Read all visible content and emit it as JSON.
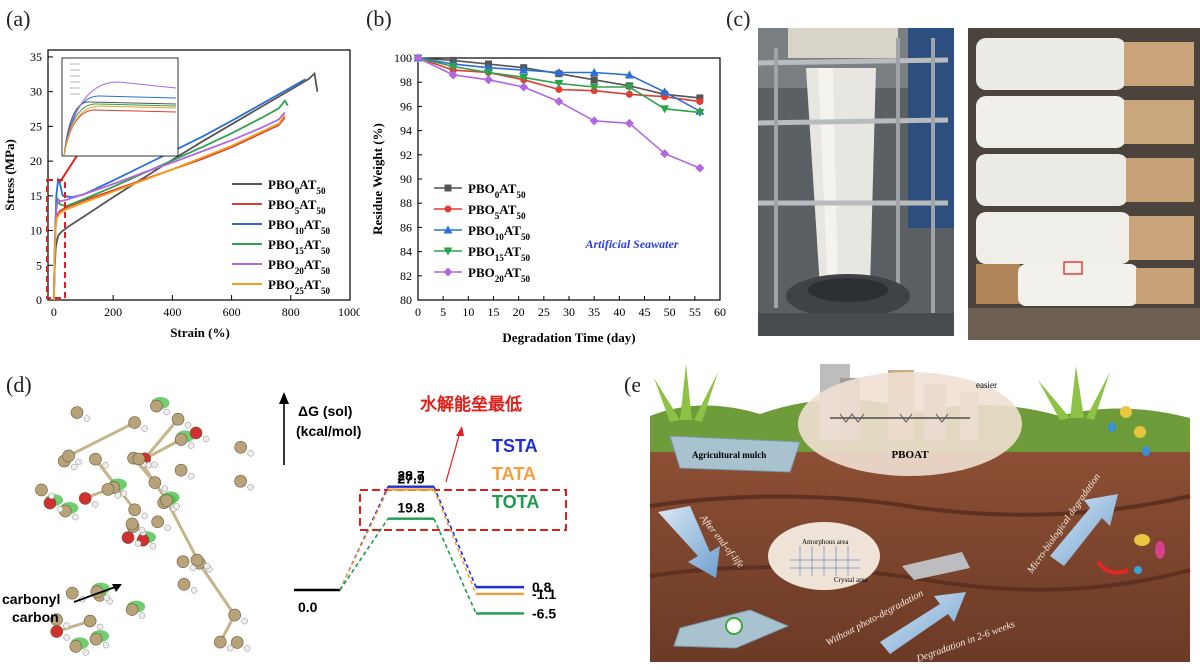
{
  "panel_labels": {
    "a": "(a)",
    "b": "(b)",
    "c": "(c)",
    "d": "(d)",
    "e": "(e)"
  },
  "chart_data": [
    {
      "id": "a",
      "type": "line",
      "xlabel": "Strain (%)",
      "ylabel": "Stress (MPa)",
      "xlim": [
        -20,
        1000
      ],
      "ylim": [
        0,
        36
      ],
      "xticks": [
        0,
        200,
        400,
        600,
        800,
        1000
      ],
      "yticks": [
        0,
        5,
        10,
        15,
        20,
        25,
        30,
        35
      ],
      "legend_position": "right",
      "series": [
        {
          "name": "PBO0AT50",
          "base": "PBO",
          "sub1": "0",
          "mid": "AT",
          "sub2": "50",
          "color": "#555555",
          "x": [
            0,
            2,
            6,
            10,
            15,
            25,
            50,
            100,
            200,
            300,
            400,
            500,
            600,
            700,
            800,
            860,
            880,
            890
          ],
          "y": [
            0,
            4,
            7.5,
            8.5,
            9.3,
            9.8,
            10.6,
            12,
            14.8,
            17.5,
            20.2,
            22.8,
            25.3,
            27.8,
            30.3,
            31.8,
            32.6,
            30
          ]
        },
        {
          "name": "PBO5AT50",
          "base": "PBO",
          "sub1": "5",
          "mid": "AT",
          "sub2": "50",
          "color": "#e03c31",
          "x": [
            0,
            2,
            6,
            10,
            20,
            40,
            100,
            200,
            300,
            400,
            500,
            600,
            700,
            760,
            780
          ],
          "y": [
            0,
            5,
            11,
            12.2,
            12.8,
            13.3,
            14.3,
            15.8,
            17.3,
            18.8,
            20.3,
            22,
            24,
            25.2,
            26.3
          ]
        },
        {
          "name": "PBO10AT50",
          "base": "PBO",
          "sub1": "10",
          "mid": "AT",
          "sub2": "50",
          "color": "#2c6fd6",
          "x": [
            0,
            3,
            8,
            14,
            20,
            30,
            60,
            100,
            200,
            300,
            400,
            500,
            600,
            700,
            800,
            850
          ],
          "y": [
            0,
            8,
            15,
            17.3,
            16.8,
            15,
            14.8,
            15.2,
            17.2,
            19.3,
            21.4,
            23.5,
            25.8,
            28.2,
            30.6,
            31.8
          ]
        },
        {
          "name": "PBO15AT50",
          "base": "PBO",
          "sub1": "15",
          "mid": "AT",
          "sub2": "50",
          "color": "#2ea24a",
          "x": [
            0,
            3,
            8,
            12,
            20,
            40,
            100,
            200,
            300,
            400,
            500,
            600,
            700,
            760,
            780,
            790
          ],
          "y": [
            0,
            7,
            13.5,
            14.5,
            13.8,
            13.5,
            14.5,
            16.3,
            18.2,
            20.1,
            22,
            24,
            26.2,
            27.6,
            28.7,
            28
          ]
        },
        {
          "name": "PBO20AT50",
          "base": "PBO",
          "sub1": "20",
          "mid": "AT",
          "sub2": "50",
          "color": "#b266e0",
          "x": [
            0,
            3,
            8,
            14,
            20,
            40,
            100,
            200,
            300,
            400,
            500,
            600,
            700,
            760,
            780
          ],
          "y": [
            0,
            7,
            13,
            14.5,
            14.2,
            14.4,
            15.2,
            16.7,
            18.3,
            19.8,
            21.4,
            23,
            24.8,
            26,
            27
          ]
        },
        {
          "name": "PBO25AT50",
          "base": "PBO",
          "sub1": "25",
          "mid": "AT",
          "sub2": "50",
          "color": "#f0a020",
          "x": [
            0,
            2,
            6,
            10,
            20,
            40,
            100,
            200,
            300,
            400,
            500,
            600,
            700,
            760,
            780
          ],
          "y": [
            0,
            5.5,
            10.5,
            11.8,
            12.5,
            13,
            14,
            15.6,
            17.2,
            18.8,
            20.5,
            22.2,
            24.2,
            25.4,
            26.6
          ]
        }
      ]
    },
    {
      "id": "b",
      "type": "line",
      "xlabel": "Degradation Time (day)",
      "ylabel": "Residue Weight (%)",
      "xlim": [
        0,
        60
      ],
      "ylim": [
        80,
        100
      ],
      "xticks": [
        0,
        5,
        10,
        15,
        20,
        25,
        30,
        35,
        40,
        45,
        50,
        55,
        60
      ],
      "yticks": [
        80,
        82,
        84,
        86,
        88,
        90,
        92,
        94,
        96,
        98,
        100
      ],
      "annotation": "Artificial Seawater",
      "annotation_color": "#2a3ee0",
      "legend_position": "left",
      "series": [
        {
          "name": "PBO0AT50",
          "base": "PBO",
          "sub1": "0",
          "mid": "AT",
          "sub2": "50",
          "color": "#555555",
          "marker": "square",
          "x": [
            0,
            7,
            14,
            21,
            28,
            35,
            42,
            49,
            56
          ],
          "y": [
            100,
            99.8,
            99.5,
            99.2,
            98.7,
            98.2,
            97.7,
            97.0,
            96.7
          ]
        },
        {
          "name": "PBO5AT50",
          "base": "PBO",
          "sub1": "5",
          "mid": "AT",
          "sub2": "50",
          "color": "#e03c31",
          "marker": "circle",
          "x": [
            0,
            7,
            14,
            21,
            28,
            35,
            42,
            49,
            56
          ],
          "y": [
            100,
            99.0,
            98.8,
            98.2,
            97.4,
            97.3,
            97.0,
            96.8,
            96.4
          ]
        },
        {
          "name": "PBO10AT50",
          "base": "PBO",
          "sub1": "10",
          "mid": "AT",
          "sub2": "50",
          "color": "#2c6fd6",
          "marker": "triangle",
          "x": [
            0,
            7,
            14,
            21,
            28,
            35,
            42,
            49,
            56
          ],
          "y": [
            100,
            99.5,
            99.2,
            99.0,
            98.8,
            98.8,
            98.6,
            97.2,
            95.6
          ]
        },
        {
          "name": "PBO15AT50",
          "base": "PBO",
          "sub1": "15",
          "mid": "AT",
          "sub2": "50",
          "color": "#2ea24a",
          "marker": "triangle-down",
          "x": [
            0,
            7,
            14,
            21,
            28,
            35,
            42,
            49,
            56
          ],
          "y": [
            100,
            99.3,
            98.8,
            98.4,
            97.9,
            97.6,
            97.6,
            95.8,
            95.5
          ]
        },
        {
          "name": "PBO20AT50",
          "base": "PBO",
          "sub1": "20",
          "mid": "AT",
          "sub2": "50",
          "color": "#b266e0",
          "marker": "diamond",
          "x": [
            0,
            7,
            14,
            21,
            28,
            35,
            42,
            49,
            56
          ],
          "y": [
            100,
            98.6,
            98.2,
            97.6,
            96.4,
            94.8,
            94.6,
            92.1,
            90.9
          ]
        }
      ]
    },
    {
      "id": "d",
      "type": "line",
      "ylabel_line1": "ΔG (sol)",
      "ylabel_line2": "(kcal/mol)",
      "highlight_text": "水解能垒最低",
      "highlight_color": "#e0201a",
      "start_value": "0.0",
      "series": [
        {
          "name": "TSTA",
          "color": "#1f2fd0",
          "ts": "28.7",
          "product": "0.8",
          "ts_value": 28.7,
          "product_value": 0.8
        },
        {
          "name": "TATA",
          "color": "#f0a040",
          "ts": "27.9",
          "product": "-1.1",
          "ts_value": 27.9,
          "product_value": -1.1
        },
        {
          "name": "TOTA",
          "color": "#1e9a50",
          "ts": "19.8",
          "product": "-6.5",
          "ts_value": 19.8,
          "product_value": -6.5
        }
      ]
    }
  ],
  "panel_d": {
    "molecule_label_line1": "carbonyl",
    "molecule_label_line2": "carbon"
  },
  "panel_e": {
    "labels": {
      "mulch": "Agricultural mulch",
      "pboat": "PBOAT",
      "easier": "easier",
      "after_end": "After end-of-life",
      "amorphous": "Amorphous area",
      "crystal": "Crystal area",
      "micro_bio": "Micro-biological degradation",
      "without_photo": "Without photo-degradation",
      "weeks": "Degradation in 2-6 weeks"
    }
  }
}
